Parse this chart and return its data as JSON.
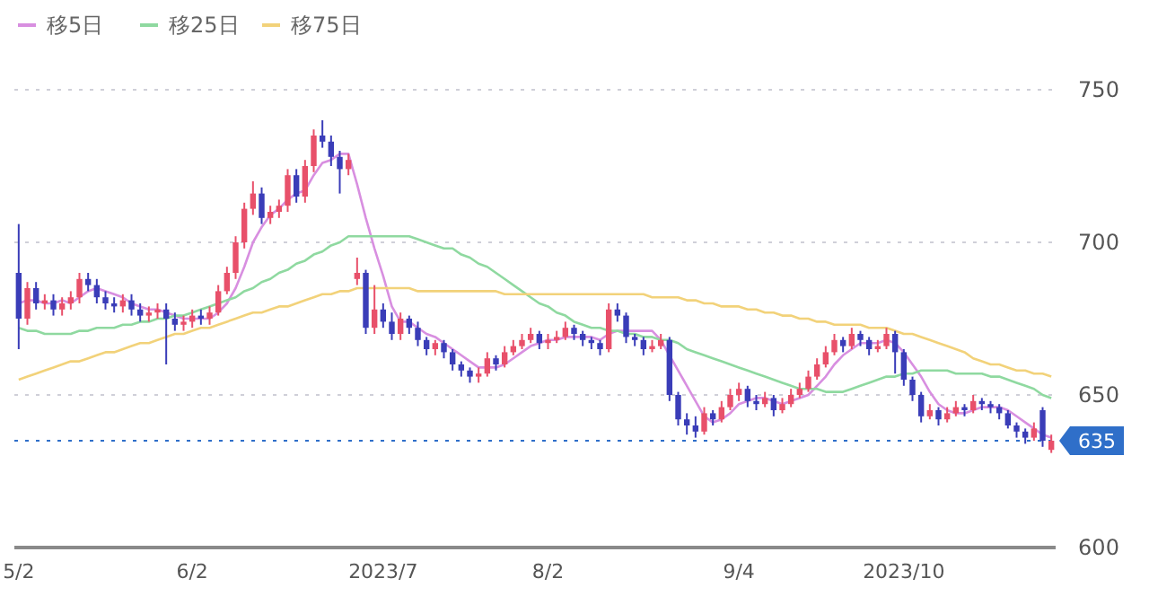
{
  "chart_data": {
    "type": "candlestick",
    "categories": [
      "5/2",
      null,
      null,
      null,
      null,
      null,
      null,
      null,
      null,
      null,
      null,
      null,
      null,
      null,
      null,
      null,
      null,
      null,
      null,
      null,
      "6/2",
      null,
      null,
      null,
      null,
      null,
      null,
      null,
      null,
      null,
      null,
      null,
      null,
      null,
      null,
      null,
      null,
      null,
      null,
      null,
      null,
      null,
      "2023/7",
      null,
      null,
      null,
      null,
      null,
      null,
      null,
      null,
      null,
      null,
      null,
      null,
      null,
      null,
      null,
      null,
      null,
      null,
      "8/2",
      null,
      null,
      null,
      null,
      null,
      null,
      null,
      null,
      null,
      null,
      null,
      null,
      null,
      null,
      null,
      null,
      null,
      null,
      null,
      null,
      null,
      "9/4",
      null,
      null,
      null,
      null,
      null,
      null,
      null,
      null,
      null,
      null,
      null,
      null,
      null,
      null,
      null,
      null,
      null,
      null,
      "2023/10",
      null,
      null,
      null,
      null,
      null,
      null,
      null,
      null,
      null,
      null,
      null,
      null,
      null,
      null,
      null,
      null,
      null
    ],
    "ohlc": [
      [
        690,
        706,
        665,
        675
      ],
      [
        675,
        687,
        673,
        685
      ],
      [
        685,
        687,
        678,
        680
      ],
      [
        680,
        683,
        678,
        681
      ],
      [
        681,
        683,
        676,
        678
      ],
      [
        678,
        682,
        676,
        680
      ],
      [
        680,
        684,
        678,
        682
      ],
      [
        682,
        690,
        680,
        688
      ],
      [
        688,
        690,
        684,
        686
      ],
      [
        686,
        688,
        680,
        682
      ],
      [
        682,
        684,
        678,
        680
      ],
      [
        680,
        682,
        677,
        679
      ],
      [
        679,
        683,
        677,
        681
      ],
      [
        681,
        683,
        676,
        678
      ],
      [
        678,
        680,
        674,
        676
      ],
      [
        676,
        679,
        674,
        677
      ],
      [
        677,
        680,
        675,
        678
      ],
      [
        678,
        680,
        660,
        675
      ],
      [
        675,
        677,
        671,
        673
      ],
      [
        673,
        676,
        671,
        674
      ],
      [
        674,
        678,
        672,
        676
      ],
      [
        676,
        678,
        673,
        675
      ],
      [
        675,
        679,
        673,
        677
      ],
      [
        677,
        686,
        676,
        684
      ],
      [
        684,
        692,
        683,
        690
      ],
      [
        690,
        702,
        688,
        700
      ],
      [
        700,
        713,
        698,
        711
      ],
      [
        711,
        720,
        709,
        716
      ],
      [
        716,
        718,
        706,
        708
      ],
      [
        708,
        712,
        706,
        710
      ],
      [
        710,
        714,
        708,
        712
      ],
      [
        712,
        724,
        710,
        722
      ],
      [
        722,
        724,
        713,
        715
      ],
      [
        715,
        727,
        713,
        725
      ],
      [
        725,
        737,
        723,
        735
      ],
      [
        735,
        740,
        731,
        733
      ],
      [
        733,
        735,
        725,
        728
      ],
      [
        728,
        730,
        716,
        724
      ],
      [
        724,
        729,
        722,
        727
      ],
      [
        688,
        695,
        686,
        690
      ],
      [
        690,
        691,
        670,
        672
      ],
      [
        672,
        686,
        670,
        678
      ],
      [
        678,
        680,
        672,
        674
      ],
      [
        674,
        677,
        668,
        670
      ],
      [
        670,
        677,
        668,
        675
      ],
      [
        675,
        676,
        670,
        672
      ],
      [
        672,
        674,
        666,
        668
      ],
      [
        668,
        669,
        663,
        665
      ],
      [
        665,
        668,
        663,
        667
      ],
      [
        667,
        668,
        662,
        664
      ],
      [
        664,
        665,
        658,
        660
      ],
      [
        660,
        661,
        656,
        658
      ],
      [
        658,
        659,
        654,
        656
      ],
      [
        656,
        659,
        654,
        657
      ],
      [
        657,
        664,
        656,
        662
      ],
      [
        662,
        663,
        658,
        660
      ],
      [
        660,
        666,
        659,
        664
      ],
      [
        664,
        668,
        663,
        666
      ],
      [
        666,
        670,
        665,
        668
      ],
      [
        668,
        672,
        667,
        670
      ],
      [
        670,
        671,
        665,
        667
      ],
      [
        667,
        670,
        665,
        668
      ],
      [
        668,
        671,
        667,
        669
      ],
      [
        669,
        674,
        668,
        672
      ],
      [
        672,
        673,
        668,
        670
      ],
      [
        670,
        671,
        666,
        668
      ],
      [
        668,
        669,
        665,
        667
      ],
      [
        667,
        668,
        663,
        665
      ],
      [
        665,
        680,
        664,
        678
      ],
      [
        678,
        680,
        674,
        676
      ],
      [
        676,
        677,
        667,
        669
      ],
      [
        669,
        670,
        666,
        668
      ],
      [
        668,
        669,
        663,
        665
      ],
      [
        665,
        668,
        664,
        666
      ],
      [
        666,
        670,
        665,
        668
      ],
      [
        668,
        669,
        648,
        650
      ],
      [
        650,
        651,
        640,
        642
      ],
      [
        642,
        644,
        637,
        640
      ],
      [
        640,
        643,
        636,
        638
      ],
      [
        638,
        646,
        637,
        644
      ],
      [
        644,
        645,
        640,
        642
      ],
      [
        642,
        648,
        641,
        646
      ],
      [
        646,
        652,
        645,
        650
      ],
      [
        650,
        654,
        648,
        652
      ],
      [
        652,
        653,
        646,
        648
      ],
      [
        648,
        650,
        645,
        647
      ],
      [
        647,
        651,
        646,
        649
      ],
      [
        649,
        650,
        643,
        645
      ],
      [
        645,
        649,
        644,
        647
      ],
      [
        647,
        652,
        646,
        650
      ],
      [
        650,
        654,
        649,
        652
      ],
      [
        652,
        658,
        651,
        656
      ],
      [
        656,
        662,
        655,
        660
      ],
      [
        660,
        666,
        659,
        664
      ],
      [
        664,
        670,
        663,
        668
      ],
      [
        668,
        669,
        664,
        666
      ],
      [
        666,
        672,
        665,
        670
      ],
      [
        670,
        671,
        666,
        668
      ],
      [
        668,
        669,
        663,
        665
      ],
      [
        665,
        668,
        664,
        666
      ],
      [
        666,
        672,
        665,
        670
      ],
      [
        670,
        671,
        657,
        664
      ],
      [
        664,
        665,
        653,
        655
      ],
      [
        655,
        656,
        648,
        650
      ],
      [
        650,
        651,
        641,
        643
      ],
      [
        643,
        647,
        642,
        645
      ],
      [
        645,
        646,
        640,
        642
      ],
      [
        642,
        646,
        641,
        644
      ],
      [
        644,
        648,
        643,
        646
      ],
      [
        646,
        647,
        643,
        645
      ],
      [
        645,
        650,
        644,
        648
      ],
      [
        648,
        649,
        645,
        647
      ],
      [
        647,
        648,
        644,
        646
      ],
      [
        646,
        647,
        642,
        644
      ],
      [
        644,
        645,
        639,
        640
      ],
      [
        640,
        641,
        636,
        638
      ],
      [
        638,
        639,
        634,
        636
      ],
      [
        636,
        641,
        635,
        639
      ],
      [
        645,
        646,
        633,
        635
      ],
      [
        632,
        637,
        631,
        635
      ]
    ],
    "series": [
      {
        "name": "移5日",
        "type": "line",
        "color": "#d88fe0",
        "values": [
          680,
          681,
          681,
          680,
          680,
          681,
          680,
          682,
          684,
          685,
          684,
          683,
          682,
          680,
          679,
          678,
          678,
          677,
          676,
          675,
          675,
          675,
          675,
          677,
          680,
          685,
          692,
          700,
          705,
          709,
          711,
          714,
          716,
          717,
          722,
          726,
          727,
          729,
          729,
          719,
          708,
          698,
          689,
          679,
          674,
          674,
          672,
          670,
          669,
          667,
          665,
          663,
          661,
          659,
          659,
          659,
          660,
          662,
          664,
          666,
          667,
          668,
          668,
          669,
          669,
          669,
          669,
          668,
          670,
          671,
          671,
          671,
          671,
          671,
          668,
          663,
          658,
          653,
          648,
          643,
          641,
          642,
          644,
          647,
          648,
          649,
          649,
          648,
          647,
          648,
          649,
          650,
          653,
          656,
          660,
          663,
          665,
          667,
          667,
          667,
          668,
          667,
          664,
          660,
          656,
          651,
          647,
          645,
          644,
          644,
          645,
          646,
          646,
          646,
          645,
          643,
          641,
          639,
          637,
          636
        ]
      },
      {
        "name": "移25日",
        "type": "line",
        "color": "#8fd9a0",
        "values": [
          672,
          671,
          671,
          670,
          670,
          670,
          670,
          671,
          671,
          672,
          672,
          672,
          673,
          673,
          674,
          674,
          675,
          675,
          676,
          676,
          677,
          678,
          679,
          680,
          681,
          682,
          684,
          685,
          687,
          688,
          690,
          691,
          693,
          694,
          696,
          697,
          699,
          700,
          702,
          702,
          702,
          702,
          702,
          702,
          702,
          702,
          701,
          700,
          699,
          698,
          698,
          696,
          695,
          693,
          692,
          690,
          688,
          686,
          684,
          682,
          680,
          679,
          677,
          676,
          674,
          673,
          672,
          672,
          671,
          671,
          670,
          670,
          669,
          669,
          668,
          668,
          667,
          665,
          664,
          663,
          662,
          661,
          660,
          659,
          658,
          657,
          656,
          655,
          654,
          653,
          652,
          652,
          652,
          651,
          651,
          651,
          652,
          653,
          654,
          655,
          656,
          656,
          657,
          657,
          658,
          658,
          658,
          658,
          657,
          657,
          657,
          657,
          656,
          656,
          655,
          654,
          653,
          652,
          650,
          649
        ]
      },
      {
        "name": "移75日",
        "type": "line",
        "color": "#f2d27a",
        "values": [
          655,
          656,
          657,
          658,
          659,
          660,
          661,
          661,
          662,
          663,
          664,
          664,
          665,
          666,
          667,
          667,
          668,
          669,
          670,
          670,
          671,
          672,
          672,
          673,
          674,
          675,
          676,
          677,
          677,
          678,
          679,
          679,
          680,
          681,
          682,
          683,
          683,
          684,
          684,
          685,
          685,
          685,
          685,
          685,
          685,
          685,
          684,
          684,
          684,
          684,
          684,
          684,
          684,
          684,
          684,
          684,
          683,
          683,
          683,
          683,
          683,
          683,
          683,
          683,
          683,
          683,
          683,
          683,
          683,
          683,
          683,
          683,
          683,
          682,
          682,
          682,
          682,
          681,
          681,
          680,
          680,
          679,
          679,
          679,
          678,
          678,
          677,
          677,
          676,
          676,
          675,
          675,
          674,
          674,
          673,
          673,
          673,
          673,
          672,
          672,
          672,
          671,
          670,
          670,
          669,
          668,
          667,
          666,
          665,
          664,
          662,
          661,
          660,
          660,
          659,
          658,
          658,
          657,
          657,
          656
        ]
      }
    ],
    "ylim": [
      600,
      750
    ],
    "yticks": [
      600,
      650,
      700,
      750
    ],
    "grid": "y",
    "legend": "top left",
    "ref_lines": [
      {
        "axis": "y",
        "value": 635,
        "label": "635",
        "color": "#2f6fc9",
        "line_style": "dotted"
      }
    ]
  }
}
